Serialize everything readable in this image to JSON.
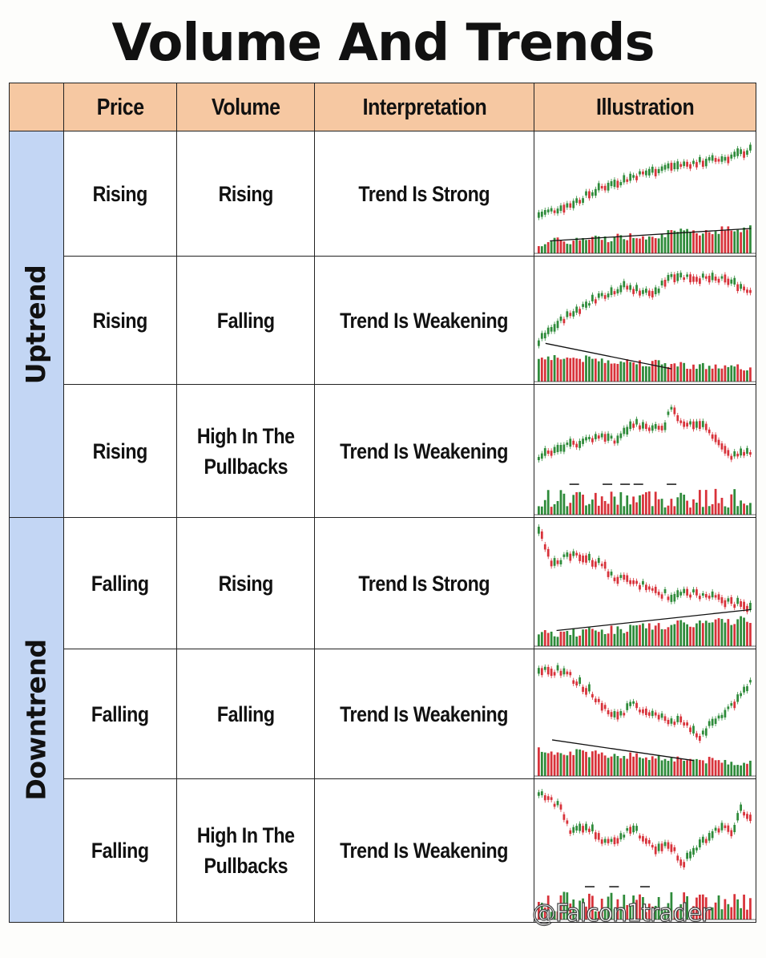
{
  "title": "Volume And Trends",
  "headers": {
    "price": "Price",
    "volume": "Volume",
    "interpretation": "Interpretation",
    "illustration": "Illustration"
  },
  "groups": {
    "uptrend": "Uptrend",
    "downtrend": "Downtrend"
  },
  "rows": [
    {
      "group": "Uptrend",
      "price": "Rising",
      "volume": "Rising",
      "interpretation": "Trend Is Strong",
      "illustration": "uptrend-rising-volume-chart-icon"
    },
    {
      "group": "Uptrend",
      "price": "Rising",
      "volume": "Falling",
      "interpretation": "Trend Is Weakening",
      "illustration": "uptrend-falling-volume-chart-icon"
    },
    {
      "group": "Uptrend",
      "price": "Rising",
      "volume_line1": "High In The",
      "volume_line2": "Pullbacks",
      "interpretation": "Trend Is Weakening",
      "illustration": "uptrend-pullback-volume-chart-icon"
    },
    {
      "group": "Downtrend",
      "price": "Falling",
      "volume": "Rising",
      "interpretation": "Trend Is Strong",
      "illustration": "downtrend-rising-volume-chart-icon"
    },
    {
      "group": "Downtrend",
      "price": "Falling",
      "volume": "Falling",
      "interpretation": "Trend Is Weakening",
      "illustration": "downtrend-falling-volume-chart-icon"
    },
    {
      "group": "Downtrend",
      "price": "Falling",
      "volume_line1": "High In The",
      "volume_line2": "Pullbacks",
      "interpretation": "Trend Is Weakening",
      "illustration": "downtrend-pullback-volume-chart-icon"
    }
  ],
  "colors": {
    "header_bg": "#f6c8a2",
    "side_bg": "#c3d6f4",
    "bull": "#2e8b3a",
    "bear": "#d8323a"
  },
  "watermark": "@Falcon1trader"
}
